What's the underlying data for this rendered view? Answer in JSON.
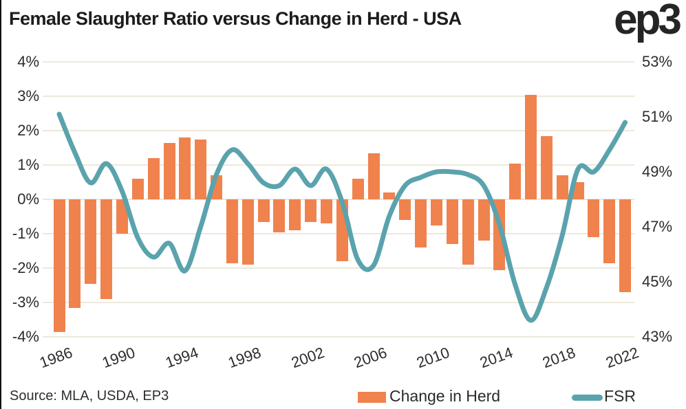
{
  "title": "Female Slaughter Ratio versus Change in Herd - USA",
  "logo": "ep3",
  "source": "Source: MLA, USDA, EP3",
  "legend": {
    "bar_label": "Change in Herd",
    "line_label": "FSR"
  },
  "colors": {
    "bar": "#F0824D",
    "line": "#5AA3AD",
    "grid": "#ECE8DB",
    "text": "#1F1F1F"
  },
  "chart_data": {
    "type": "bar",
    "subtype": "bar+line dual axis",
    "title": "Female Slaughter Ratio versus Change in Herd - USA",
    "x": [
      1986,
      1987,
      1988,
      1989,
      1990,
      1991,
      1992,
      1993,
      1994,
      1995,
      1996,
      1997,
      1998,
      1999,
      2000,
      2001,
      2002,
      2003,
      2004,
      2005,
      2006,
      2007,
      2008,
      2009,
      2010,
      2011,
      2012,
      2013,
      2014,
      2015,
      2016,
      2017,
      2018,
      2019,
      2020,
      2021,
      2022
    ],
    "series": [
      {
        "name": "Change in Herd",
        "type": "bar",
        "axis": "left",
        "unit": "%",
        "values": [
          -3.85,
          -3.15,
          -2.45,
          -2.9,
          -1.0,
          0.6,
          1.2,
          1.65,
          1.8,
          1.75,
          0.7,
          -1.85,
          -1.9,
          -0.65,
          -0.95,
          -0.9,
          -0.65,
          -0.7,
          -1.8,
          0.6,
          1.35,
          0.2,
          -0.6,
          -1.4,
          -0.75,
          -1.3,
          -1.9,
          -1.2,
          -2.05,
          1.05,
          3.05,
          1.85,
          0.7,
          0.5,
          -1.1,
          -1.85,
          -2.7
        ]
      },
      {
        "name": "FSR",
        "type": "line",
        "axis": "right",
        "unit": "%",
        "values": [
          51.1,
          49.7,
          48.6,
          49.3,
          48.3,
          46.6,
          45.9,
          46.4,
          45.4,
          47.0,
          48.9,
          49.8,
          49.3,
          48.6,
          48.5,
          49.1,
          48.5,
          49.1,
          47.9,
          45.8,
          45.6,
          47.4,
          48.5,
          48.8,
          49.0,
          49.0,
          48.9,
          48.5,
          47.1,
          44.9,
          43.6,
          44.8,
          46.7,
          49.1,
          49.0,
          49.8,
          50.8
        ]
      }
    ],
    "left_axis": {
      "range": [
        -4,
        4
      ],
      "ticks": [
        "4%",
        "3%",
        "2%",
        "1%",
        "0%",
        "-1%",
        "-2%",
        "-3%",
        "-4%"
      ]
    },
    "right_axis": {
      "range": [
        43,
        53
      ],
      "ticks": [
        "53%",
        "51%",
        "49%",
        "47%",
        "45%",
        "43%"
      ]
    },
    "x_ticks": [
      "1986",
      "1990",
      "1994",
      "1998",
      "2002",
      "2006",
      "2010",
      "2014",
      "2018",
      "2022"
    ],
    "grid": true,
    "legend_position": "bottom"
  }
}
